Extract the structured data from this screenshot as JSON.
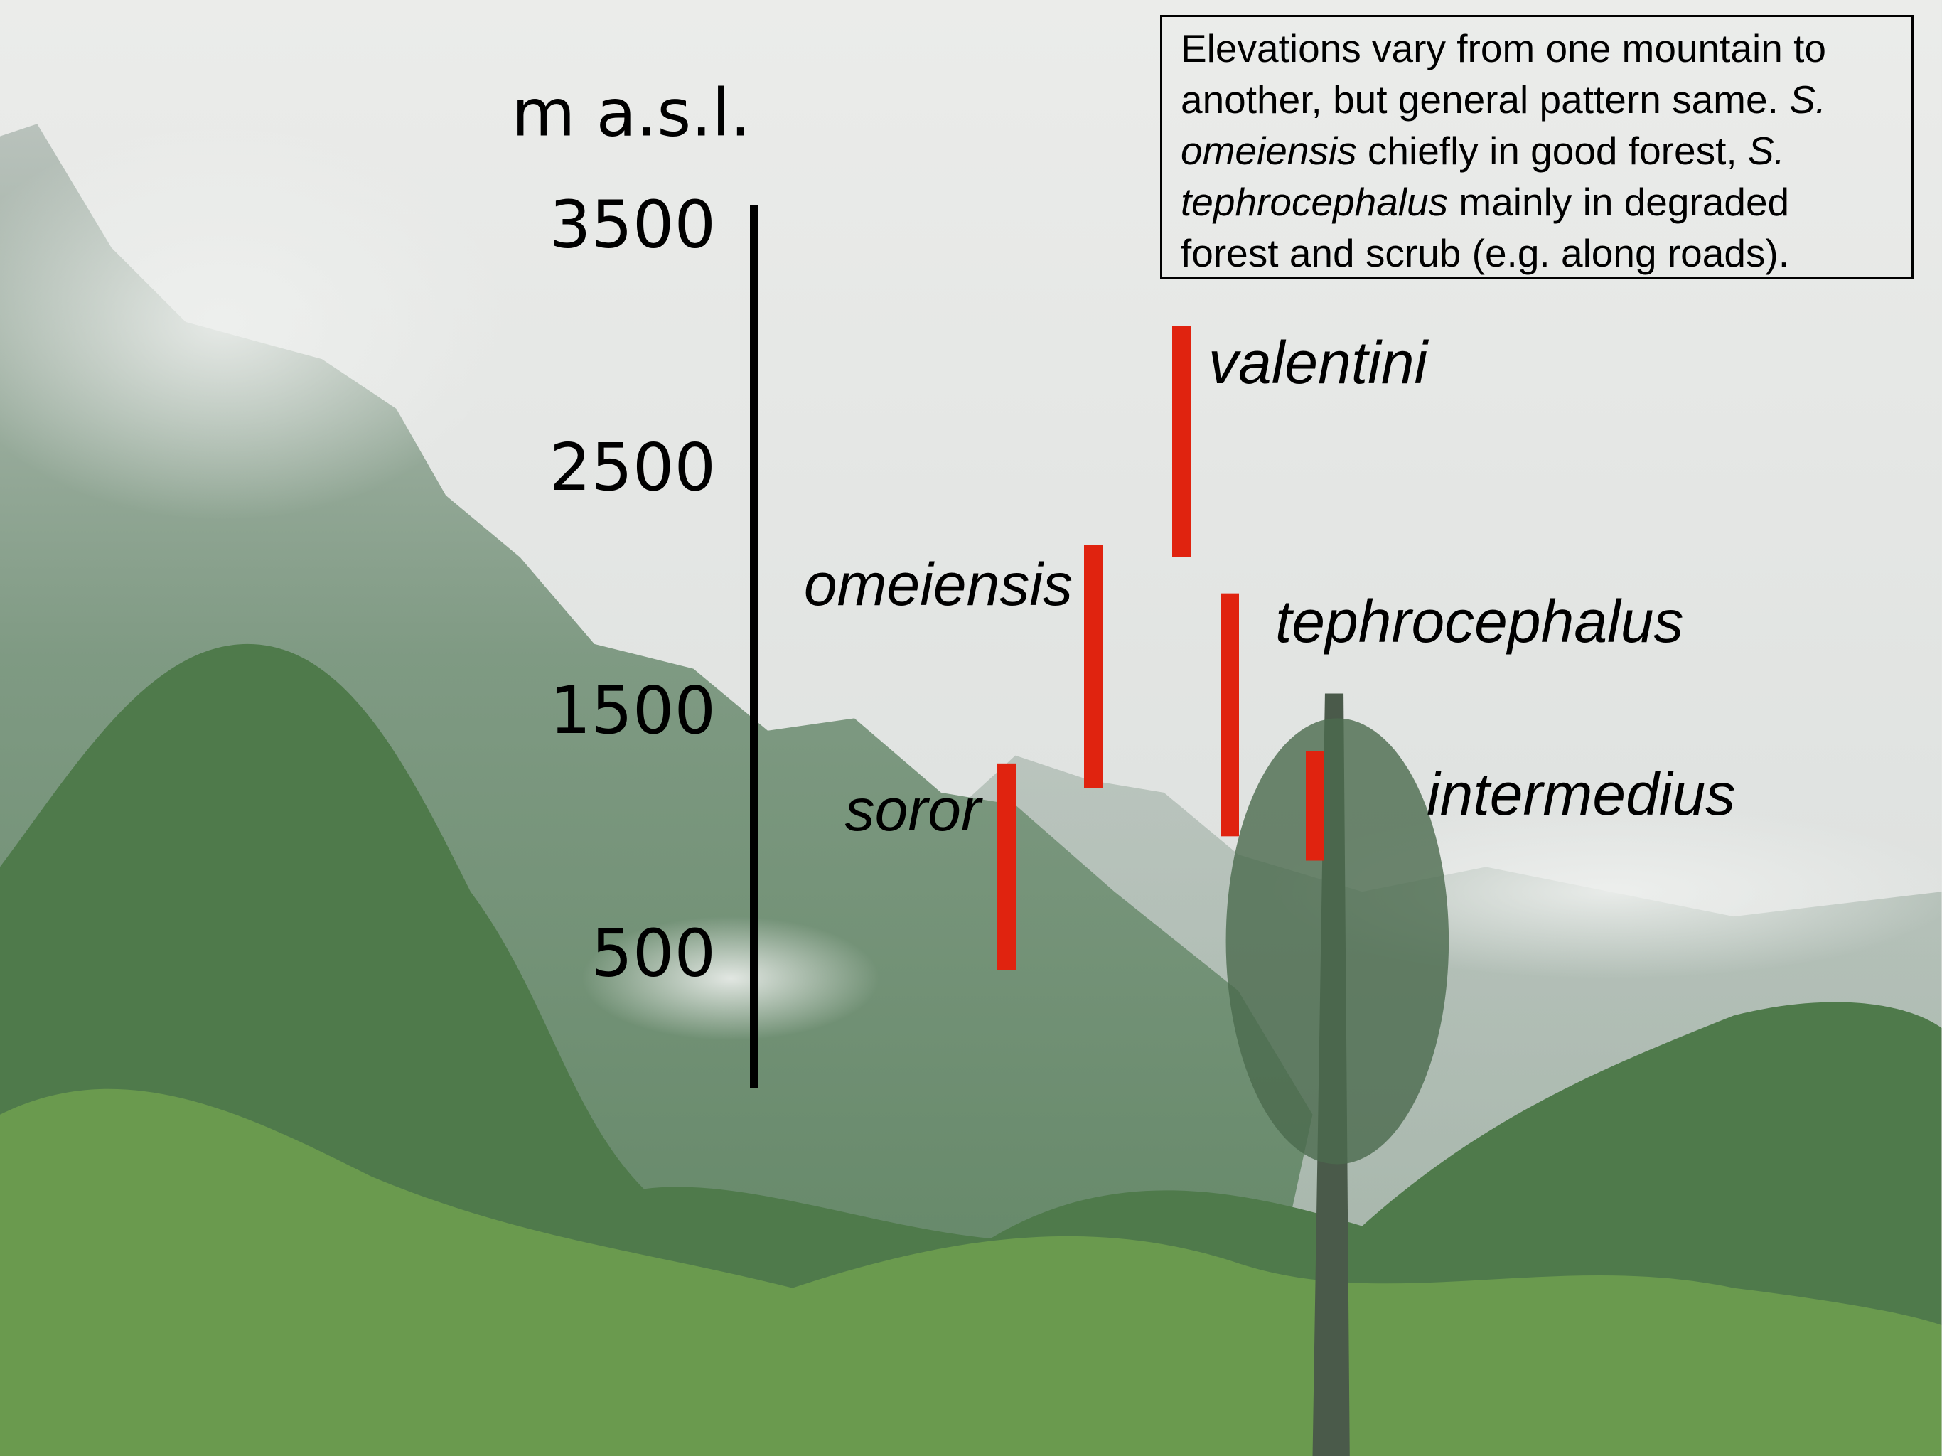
{
  "chart_data": {
    "type": "range-bar",
    "y_label": "m a.s.l.",
    "categories": [
      "soror",
      "omeiensis",
      "valentini",
      "tephrocephalus",
      "intermedius"
    ],
    "low": [
      450,
      1200,
      2150,
      1000,
      900
    ],
    "high": [
      1300,
      2200,
      3100,
      2000,
      1350
    ],
    "color": "#e0230f",
    "ylim": [
      0,
      3600
    ],
    "yticks": [
      500,
      1500,
      2500,
      3500
    ],
    "annotation": {
      "lines": [
        [
          {
            "text": "Elevations vary from one mountain to",
            "italic": false
          }
        ],
        [
          {
            "text": "another, but general pattern same. ",
            "italic": false
          },
          {
            "text": "S.",
            "italic": true
          }
        ],
        [
          {
            "text": "omeiensis",
            "italic": true
          },
          {
            "text": " chiefly in good forest, ",
            "italic": false
          },
          {
            "text": "S.",
            "italic": true
          }
        ],
        [
          {
            "text": "tephrocephalus",
            "italic": true
          },
          {
            "text": " mainly in degraded",
            "italic": false
          }
        ],
        [
          {
            "text": "forest and scrub (e.g. along roads).",
            "italic": false
          }
        ]
      ]
    }
  }
}
